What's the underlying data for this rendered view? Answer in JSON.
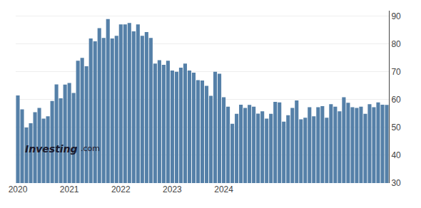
{
  "chart_data": {
    "type": "bar",
    "categories": [
      "2020",
      null,
      null,
      null,
      null,
      null,
      null,
      null,
      null,
      null,
      null,
      null,
      "2021",
      null,
      null,
      null,
      null,
      null,
      null,
      null,
      null,
      null,
      null,
      null,
      "2022",
      null,
      null,
      null,
      null,
      null,
      null,
      null,
      null,
      null,
      null,
      null,
      "2023",
      null,
      null,
      null,
      null,
      null,
      null,
      null,
      null,
      null,
      null,
      null,
      "2024",
      null,
      null,
      null,
      null,
      null,
      null,
      null,
      null,
      null,
      null,
      null,
      null,
      null,
      null,
      null,
      null,
      null,
      null,
      null,
      null,
      null,
      null,
      null,
      null,
      null,
      null,
      null,
      null,
      null,
      null,
      null,
      null,
      null,
      null,
      null,
      null,
      null,
      null
    ],
    "values": [
      61.5,
      56.5,
      50.0,
      51.5,
      55.5,
      57.0,
      53.2,
      54.0,
      59.5,
      65.5,
      60.5,
      65.4,
      66.0,
      62.4,
      74.0,
      75.0,
      72.0,
      82.0,
      81.0,
      85.7,
      82.2,
      89.0,
      82.0,
      83.0,
      87.1,
      87.1,
      87.6,
      84.6,
      87.1,
      83.0,
      84.3,
      82.2,
      73.0,
      74.2,
      72.5,
      74.0,
      70.5,
      70.0,
      71.5,
      73.0,
      70.5,
      69.7,
      67.0,
      66.9,
      65.0,
      61.4,
      70.0,
      69.3,
      60.9,
      57.5,
      51.3,
      54.9,
      58.2,
      57.0,
      58.1,
      57.5,
      55.0,
      55.8,
      53.2,
      54.9,
      59.2,
      59.0,
      52.1,
      54.4,
      57.0,
      59.7,
      52.9,
      53.5,
      57.3,
      54.0,
      57.3,
      57.7,
      53.5,
      58.4,
      57.5,
      55.8,
      60.9,
      58.9,
      57.3,
      57.0,
      57.5,
      54.9,
      58.4,
      57.3,
      59.0,
      58.2,
      58.1
    ],
    "color": "#5580a8",
    "ylim": [
      30,
      92
    ],
    "yticks": [
      30,
      40,
      50,
      60,
      70,
      80,
      90
    ],
    "grid": true,
    "annotations": [
      "Investing",
      ".com"
    ]
  }
}
